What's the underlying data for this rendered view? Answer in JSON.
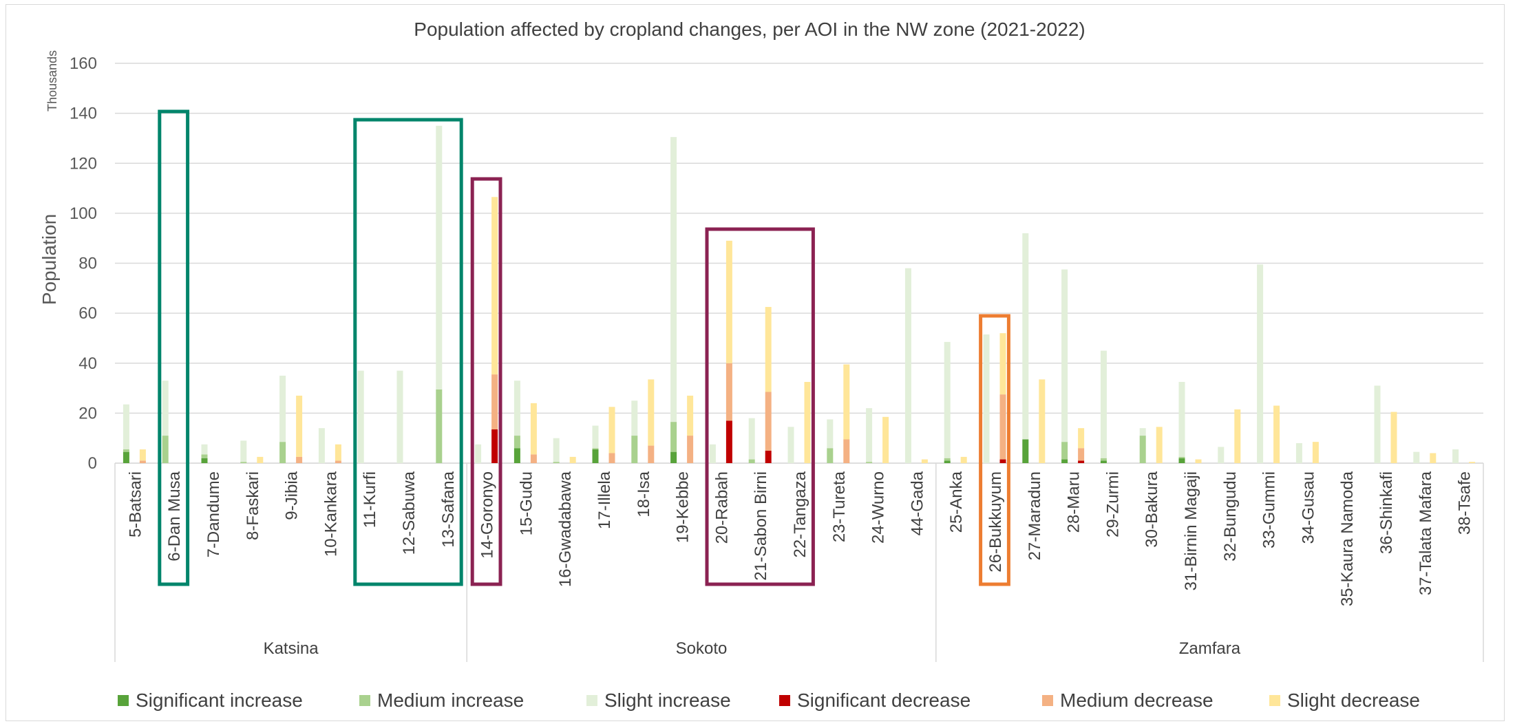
{
  "chart_data": {
    "type": "bar",
    "stacked": true,
    "title": "Population affected  by cropland changes, per AOI in the NW zone (2021-2022)",
    "ylabel": "Population",
    "yunits": "Thousands",
    "ylim": [
      0,
      160
    ],
    "yticks": [
      0,
      20,
      40,
      60,
      80,
      100,
      120,
      140,
      160
    ],
    "grid": true,
    "legend_position": "bottom",
    "colors": {
      "Significant increase": "#58a33a",
      "Medium increase": "#a9d18e",
      "Slight increase": "#e2efd9",
      "Significant decrease": "#c00000",
      "Medium decrease": "#f4b183",
      "Slight decrease": "#ffe699"
    },
    "groups": [
      {
        "name": "Katsina",
        "categories": [
          "5-Batsari",
          "6-Dan Musa",
          "7-Dandume",
          "8-Faskari",
          "9-Jibia",
          "10-Kankara",
          "11-Kurfi",
          "12-Sabuwa",
          "13-Safana"
        ]
      },
      {
        "name": "Sokoto",
        "categories": [
          "14-Goronyo",
          "15-Gudu",
          "16-Gwadabawa",
          "17-Illela",
          "18-Isa",
          "19-Kebbe",
          "20-Rabah",
          "21-Sabon Birni",
          "22-Tangaza",
          "23-Tureta",
          "24-Wurno",
          "44-Gada"
        ]
      },
      {
        "name": "Zamfara",
        "categories": [
          "25-Anka",
          "26-Bukkuyum",
          "27-Maradun",
          "28-Maru",
          "29-Zurmi",
          "30-Bakura",
          "31-Birnin Magaji",
          "32-Bungudu",
          "33-Gummi",
          "34-Gusau",
          "35-Kaura Namoda",
          "36-Shinkafi",
          "37-Talata Mafara",
          "38-Tsafe"
        ]
      }
    ],
    "categories": [
      "5-Batsari",
      "6-Dan Musa",
      "7-Dandume",
      "8-Faskari",
      "9-Jibia",
      "10-Kankara",
      "11-Kurfi",
      "12-Sabuwa",
      "13-Safana",
      "14-Goronyo",
      "15-Gudu",
      "16-Gwadabawa",
      "17-Illela",
      "18-Isa",
      "19-Kebbe",
      "20-Rabah",
      "21-Sabon Birni",
      "22-Tangaza",
      "23-Tureta",
      "24-Wurno",
      "44-Gada",
      "25-Anka",
      "26-Bukkuyum",
      "27-Maradun",
      "28-Maru",
      "29-Zurmi",
      "30-Bakura",
      "31-Birnin Magaji",
      "32-Bungudu",
      "33-Gummi",
      "34-Gusau",
      "35-Kaura Namoda",
      "36-Shinkafi",
      "37-Talata Mafara",
      "38-Tsafe"
    ],
    "series": [
      {
        "name": "Significant increase",
        "values": [
          4.5,
          0,
          2,
          0,
          0,
          0,
          0,
          0,
          0,
          0,
          6,
          0,
          5.5,
          0,
          4.5,
          0,
          0,
          0,
          0,
          0,
          0,
          1,
          0,
          9.5,
          1.5,
          1,
          0,
          2,
          0,
          0,
          0,
          0,
          0,
          0,
          0
        ]
      },
      {
        "name": "Medium increase",
        "values": [
          1,
          11,
          1.5,
          0.5,
          8.5,
          0,
          0,
          0,
          29.5,
          0,
          5,
          0.5,
          0.5,
          11,
          12,
          0,
          1.5,
          0,
          6,
          0.5,
          0,
          1,
          0,
          0,
          7,
          1,
          11,
          0.5,
          0,
          0,
          0,
          0,
          0,
          0,
          0
        ]
      },
      {
        "name": "Slight increase",
        "values": [
          18,
          22,
          4,
          8.5,
          26.5,
          14,
          37,
          37,
          105.5,
          7.5,
          22,
          9.5,
          9,
          14,
          114,
          7.5,
          16.5,
          14.5,
          11.5,
          21.5,
          78,
          46.5,
          51.5,
          82.5,
          69,
          43,
          3,
          30,
          6.5,
          79.5,
          8,
          0,
          31,
          4.5,
          5.5
        ]
      },
      {
        "name": "Significant decrease",
        "values": [
          0,
          0,
          0,
          0,
          0,
          0,
          0,
          0,
          0,
          13.5,
          0,
          0,
          0,
          0,
          0,
          17,
          5,
          0,
          0,
          0,
          0,
          0,
          1.5,
          0,
          1,
          0,
          0,
          0,
          0,
          0,
          0,
          0,
          0,
          0,
          0
        ]
      },
      {
        "name": "Medium decrease",
        "values": [
          1,
          0,
          0,
          0,
          2.5,
          1,
          0,
          0,
          0,
          22,
          3.5,
          0,
          4,
          7,
          11,
          23,
          23.5,
          0,
          9.5,
          0,
          0,
          0,
          26,
          0,
          5,
          0,
          0,
          0,
          0,
          0,
          0,
          0,
          0,
          0,
          0
        ]
      },
      {
        "name": "Slight decrease",
        "values": [
          4.5,
          0,
          0,
          2.5,
          24.5,
          6.5,
          0,
          0,
          0,
          71,
          20.5,
          2.5,
          18.5,
          26.5,
          16,
          49,
          34,
          32.5,
          30,
          18.5,
          1.5,
          2.5,
          24.5,
          33.5,
          8,
          0,
          14.5,
          1.5,
          21.5,
          23,
          8.5,
          0,
          20.5,
          4,
          0.5
        ]
      }
    ]
  }
}
